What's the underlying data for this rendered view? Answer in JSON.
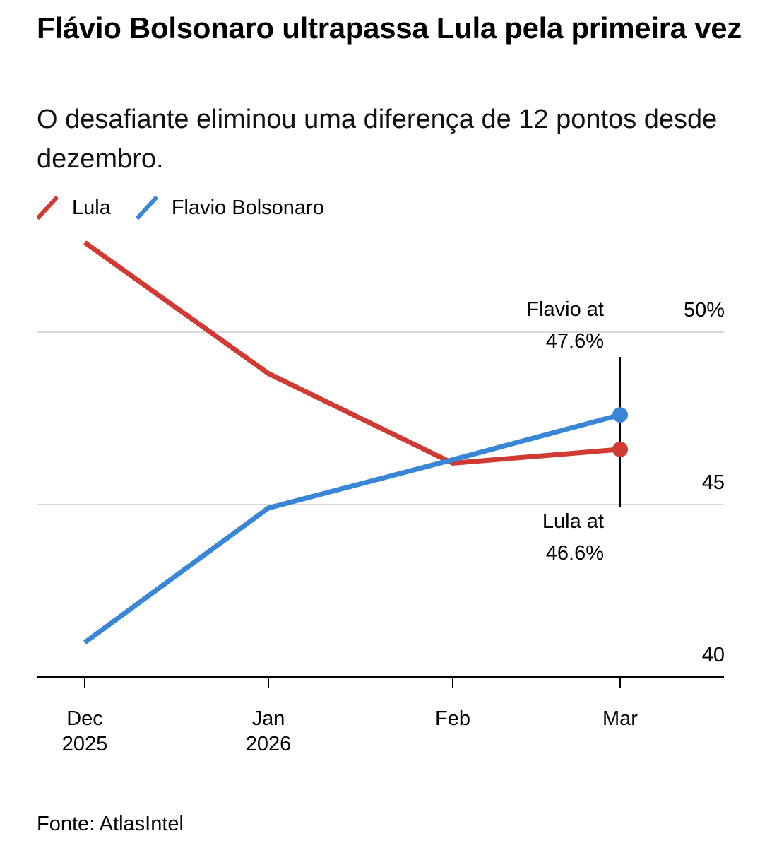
{
  "title": "Flávio Bolsonaro ultrapassa Lula pela primeira vez",
  "subtitle": "O desafiante eliminou uma diferença de 12 pontos desde dezembro.",
  "source": "Fonte: AtlasIntel",
  "colors": {
    "lula": "#d03a33",
    "flavio": "#3a86d6",
    "grid": "#d9d9d9",
    "axis": "#000000"
  },
  "chart_data": {
    "type": "line",
    "x": [
      "Dec 2025",
      "Jan 2026",
      "Feb",
      "Mar"
    ],
    "x_tick_labels": [
      [
        "Dec",
        "2025"
      ],
      [
        "Jan",
        "2026"
      ],
      [
        "Feb"
      ],
      [
        "Mar"
      ]
    ],
    "y_ticks": [
      {
        "value": 50,
        "label": "50%"
      },
      {
        "value": 45,
        "label": "45"
      },
      {
        "value": 40,
        "label": "40"
      }
    ],
    "ylim": [
      40,
      52.8
    ],
    "grid": true,
    "legend_position": "top-left",
    "series": [
      {
        "key": "lula",
        "name": "Lula",
        "values": [
          52.6,
          48.8,
          46.2,
          46.6
        ]
      },
      {
        "key": "flavio",
        "name": "Flavio Bolsonaro",
        "values": [
          41.0,
          44.9,
          46.3,
          47.6
        ]
      }
    ],
    "annotations": [
      {
        "series": "flavio",
        "lines": [
          "Flavio at",
          "47.6%"
        ]
      },
      {
        "series": "lula",
        "lines": [
          "Lula at",
          "46.6%"
        ]
      }
    ]
  }
}
